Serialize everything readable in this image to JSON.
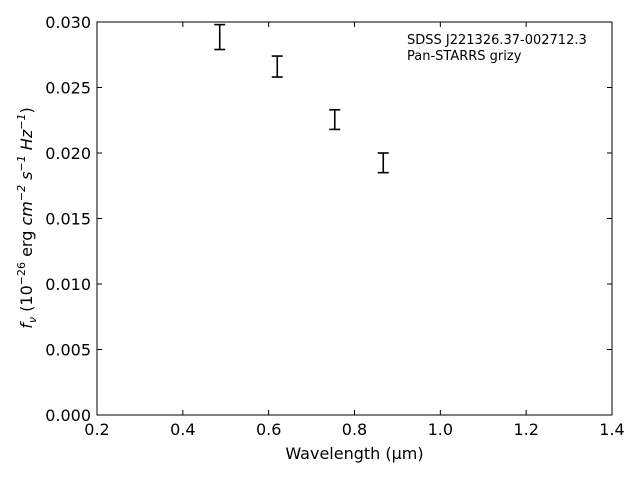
{
  "chart_data": {
    "type": "scatter",
    "title": "",
    "xlabel": "Wavelength (μm)",
    "ylabel_parts": {
      "symbol": "f",
      "subscript": "ν",
      "text_before_exp": " (10",
      "exp1": "−26",
      "text_unit_erg": " erg ",
      "unit_cm": "cm",
      "exp2": "−2",
      "unit_s": " s",
      "exp3": "−1",
      "unit_hz": " Hz",
      "exp4": "−1",
      "text_close": ")"
    },
    "xlim": [
      0.2,
      1.4
    ],
    "ylim": [
      0.0,
      0.03
    ],
    "xticks": [
      0.2,
      0.4,
      0.6,
      0.8,
      1.0,
      1.2,
      1.4
    ],
    "xtick_labels": [
      "0.2",
      "0.4",
      "0.6",
      "0.8",
      "1.0",
      "1.2",
      "1.4"
    ],
    "yticks": [
      0.0,
      0.005,
      0.01,
      0.015,
      0.02,
      0.025,
      0.03
    ],
    "ytick_labels": [
      "0.000",
      "0.005",
      "0.010",
      "0.015",
      "0.020",
      "0.025",
      "0.030"
    ],
    "grid": false,
    "annotations": [
      "SDSS J221326.37-002712.3",
      "Pan-STARRS grizy"
    ],
    "series": [
      {
        "marker": "errorbar",
        "color": "#000000",
        "points": [
          {
            "x": 0.486,
            "y_low": 0.0279,
            "y_high": 0.0298
          },
          {
            "x": 0.62,
            "y_low": 0.0258,
            "y_high": 0.0274
          },
          {
            "x": 0.754,
            "y_low": 0.0218,
            "y_high": 0.0233
          },
          {
            "x": 0.867,
            "y_low": 0.0185,
            "y_high": 0.02
          }
        ]
      }
    ]
  }
}
